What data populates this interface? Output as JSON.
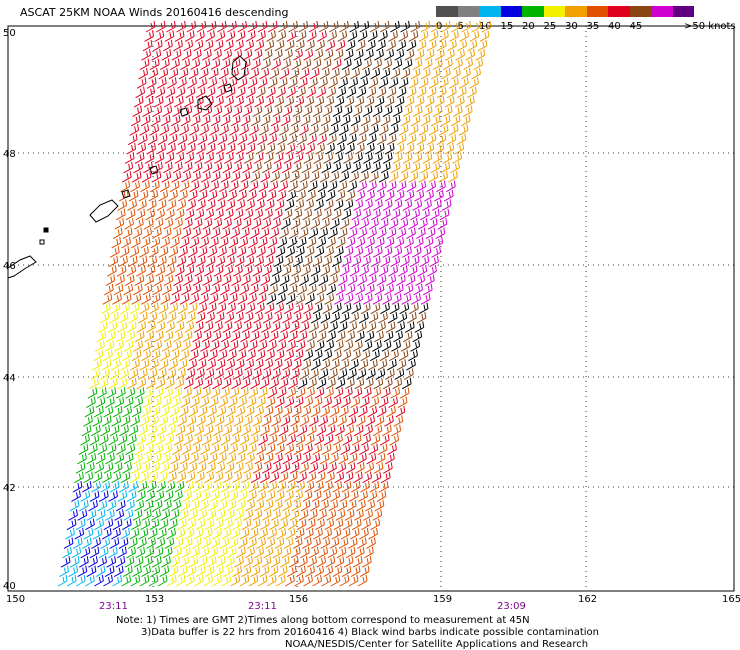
{
  "title": "ASCAT 25KM NOAA Winds 20160416 descending",
  "legend": {
    "bins": [
      {
        "label": "0",
        "color": "#505050"
      },
      {
        "label": "5",
        "color": "#808080"
      },
      {
        "label": "10",
        "color": "#00b4f0"
      },
      {
        "label": "15",
        "color": "#0000e0"
      },
      {
        "label": "20",
        "color": "#00b400"
      },
      {
        "label": "25",
        "color": "#f0f000"
      },
      {
        "label": "30",
        "color": "#f0a000"
      },
      {
        "label": "35",
        "color": "#e05000"
      },
      {
        "label": "40",
        "color": "#e00020"
      },
      {
        "label": "45",
        "color": "#8b4513"
      },
      {
        "label": "",
        "color": "#d000d0"
      },
      {
        "label": "",
        "color": "#600080"
      }
    ],
    "last_label": ">50 knots"
  },
  "map": {
    "lat_labels": [
      "50",
      "48",
      "46",
      "44",
      "42",
      "40"
    ],
    "lon_labels": [
      "150",
      "153",
      "156",
      "159",
      "162",
      "165"
    ],
    "time_labels": [
      "23:11",
      "23:11",
      "23:09"
    ]
  },
  "notes": {
    "line1": "Note: 1) Times are GMT 2)Times along bottom correspond to measurement at 45N",
    "line2": "3)Data buffer is 22 hrs from 20160416 4) Black wind barbs indicate possible contamination",
    "line3": "NOAA/NESDIS/Center for Satellite Applications and Research"
  }
}
